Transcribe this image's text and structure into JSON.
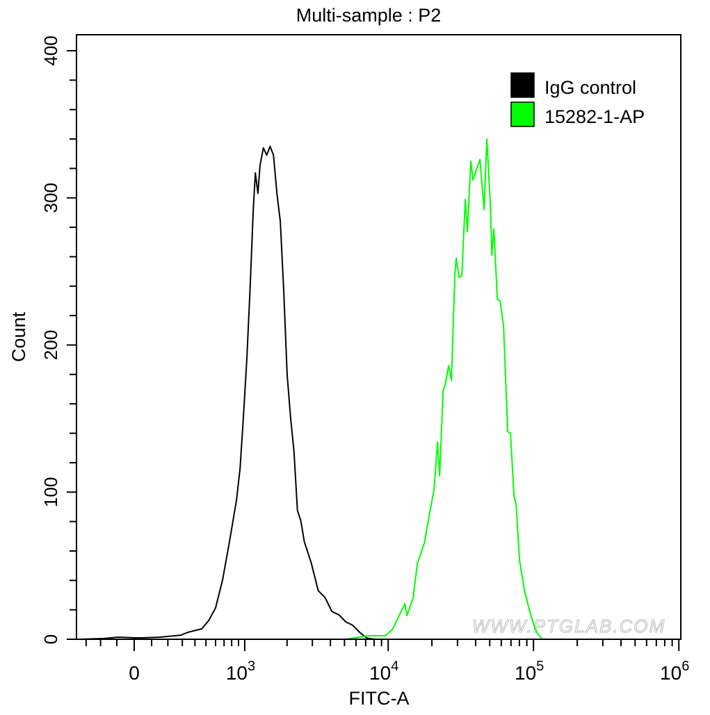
{
  "chart_data": {
    "type": "line",
    "title": "Multi-sample : P2",
    "xlabel": "FITC-A",
    "ylabel": "Count",
    "x_scale": "biexponential",
    "xlim": [
      -370,
      1000000
    ],
    "ylim": [
      0,
      411
    ],
    "grid": false,
    "legend_placement": "top-right",
    "x_ticks": [
      {
        "value": 0,
        "base": "0",
        "exp": ""
      },
      {
        "value": 1000,
        "base": "10",
        "exp": "3"
      },
      {
        "value": 10000,
        "base": "10",
        "exp": "4"
      },
      {
        "value": 100000,
        "base": "10",
        "exp": "5"
      },
      {
        "value": 1000000,
        "base": "10",
        "exp": "6"
      }
    ],
    "y_ticks": [
      0,
      100,
      200,
      300,
      400
    ],
    "series": [
      {
        "name": "IgG control",
        "color": "#000000",
        "points": [
          [
            -346,
            0
          ],
          [
            -176,
            0.5
          ],
          [
            -92,
            1.4
          ],
          [
            28,
            0.9
          ],
          [
            150,
            1.4
          ],
          [
            289,
            2.8
          ],
          [
            342,
            4.7
          ],
          [
            461,
            7.1
          ],
          [
            528,
            12.8
          ],
          [
            600,
            21.3
          ],
          [
            681,
            40.2
          ],
          [
            770,
            66.3
          ],
          [
            870,
            94.7
          ],
          [
            924,
            116
          ],
          [
            978,
            151
          ],
          [
            1034,
            189
          ],
          [
            1092,
            237
          ],
          [
            1154,
            293
          ],
          [
            1193,
            317
          ],
          [
            1246,
            303
          ],
          [
            1289,
            322
          ],
          [
            1361,
            334
          ],
          [
            1439,
            329
          ],
          [
            1520,
            335
          ],
          [
            1607,
            329
          ],
          [
            1698,
            303
          ],
          [
            1795,
            284
          ],
          [
            1895,
            237
          ],
          [
            2002,
            180
          ],
          [
            2115,
            151
          ],
          [
            2235,
            128
          ],
          [
            2362,
            87.6
          ],
          [
            2496,
            80.5
          ],
          [
            2637,
            66.3
          ],
          [
            2944,
            52
          ],
          [
            3112,
            42.6
          ],
          [
            3288,
            33.1
          ],
          [
            3672,
            28.4
          ],
          [
            4095,
            18.9
          ],
          [
            4573,
            16.6
          ],
          [
            5106,
            11.8
          ],
          [
            5702,
            9.5
          ],
          [
            6025,
            7.1
          ],
          [
            6366,
            4.7
          ],
          [
            7108,
            0.9
          ],
          [
            8000,
            0
          ]
        ]
      },
      {
        "name": "15282-1-AP",
        "color": "#00ff00",
        "points": [
          [
            5106,
            0
          ],
          [
            7345,
            2.4
          ],
          [
            9570,
            2.4
          ],
          [
            10690,
            6.6
          ],
          [
            12340,
            19.4
          ],
          [
            13030,
            24.1
          ],
          [
            13470,
            16.1
          ],
          [
            14870,
            28.4
          ],
          [
            15890,
            51.6
          ],
          [
            17740,
            65.3
          ],
          [
            19150,
            83.8
          ],
          [
            20700,
            102
          ],
          [
            21870,
            134
          ],
          [
            22600,
            111
          ],
          [
            23880,
            169
          ],
          [
            24680,
            173
          ],
          [
            26080,
            186
          ],
          [
            27240,
            176
          ],
          [
            28790,
            249
          ],
          [
            29420,
            259
          ],
          [
            30740,
            246
          ],
          [
            32140,
            247
          ],
          [
            33960,
            299
          ],
          [
            35090,
            277
          ],
          [
            37070,
            325
          ],
          [
            38350,
            312
          ],
          [
            40080,
            318
          ],
          [
            42830,
            326
          ],
          [
            45710,
            292
          ],
          [
            47780,
            340
          ],
          [
            50510,
            295
          ],
          [
            51630,
            261
          ],
          [
            53370,
            279
          ],
          [
            56390,
            231
          ],
          [
            58930,
            230
          ],
          [
            62230,
            213
          ],
          [
            66500,
            141
          ],
          [
            69500,
            140
          ],
          [
            73440,
            97.5
          ],
          [
            75890,
            91.8
          ],
          [
            80200,
            54
          ],
          [
            86690,
            33.1
          ],
          [
            92600,
            21.8
          ],
          [
            100000,
            10.4
          ],
          [
            105700,
            4.3
          ],
          [
            115400,
            0
          ]
        ]
      }
    ],
    "watermark": "WWW.PTGLAB.COM"
  }
}
